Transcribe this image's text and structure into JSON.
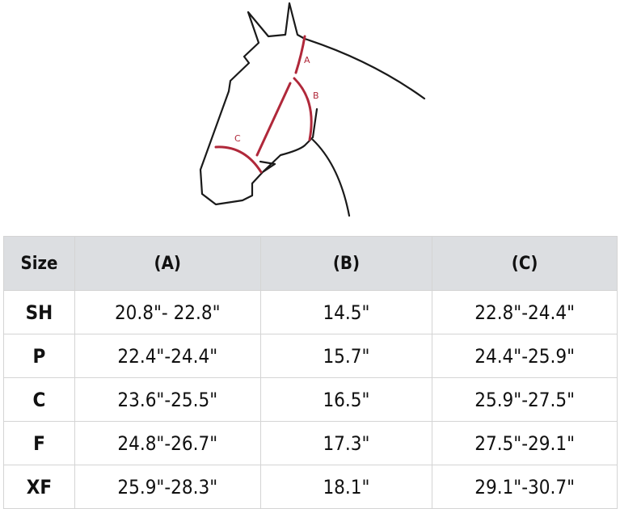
{
  "diagram": {
    "labels": [
      "A",
      "B",
      "C"
    ],
    "accent_color": "#b0283a",
    "outline_color": "#1a1a1a"
  },
  "table": {
    "headers": [
      "Size",
      "(A)",
      "(B)",
      "(C)"
    ],
    "rows": [
      [
        "SH",
        "20.8\"- 22.8\"",
        "14.5\"",
        "22.8\"-24.4\""
      ],
      [
        "P",
        "22.4\"-24.4\"",
        "15.7\"",
        "24.4\"-25.9\""
      ],
      [
        "C",
        "23.6\"-25.5\"",
        "16.5\"",
        "25.9\"-27.5\""
      ],
      [
        "F",
        "24.8\"-26.7\"",
        "17.3\"",
        "27.5\"-29.1\""
      ],
      [
        "XF",
        "25.9\"-28.3\"",
        "18.1\"",
        "29.1\"-30.7\""
      ]
    ]
  }
}
